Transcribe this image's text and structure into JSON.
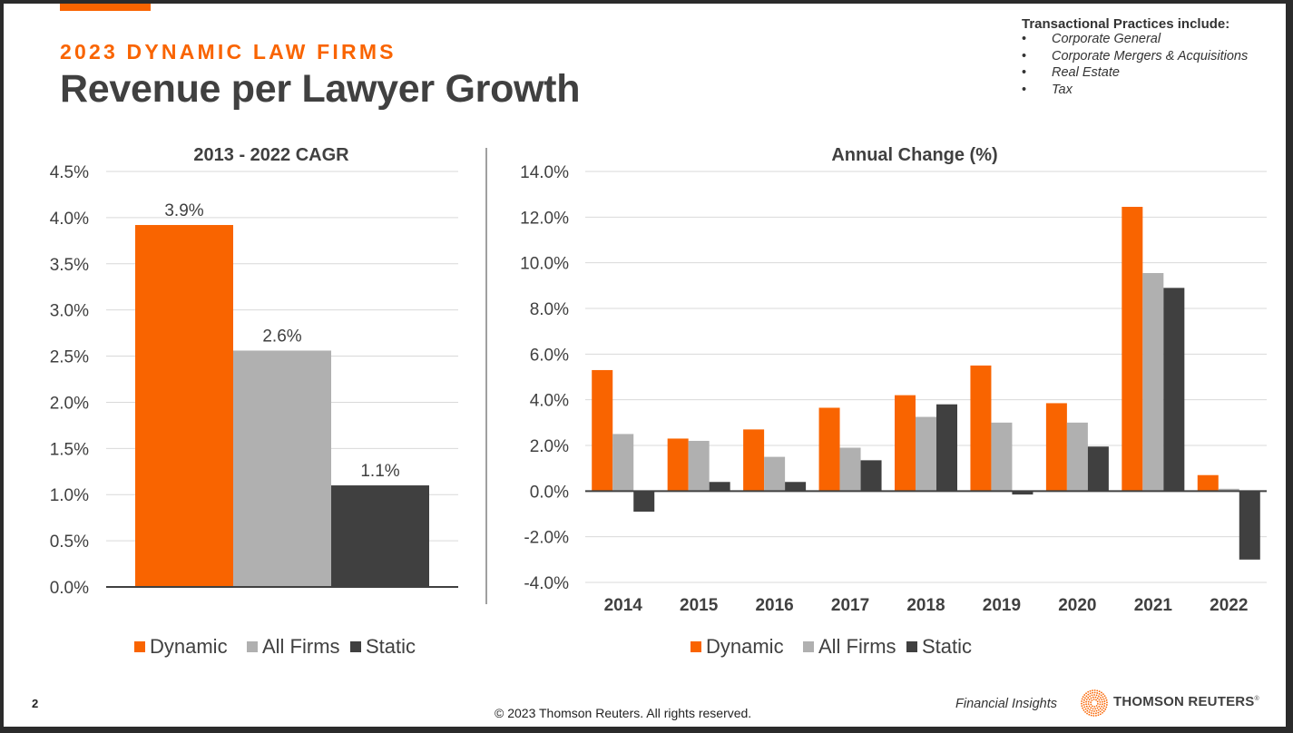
{
  "header": {
    "subtitle": "2023 DYNAMIC LAW FIRMS",
    "title": "Revenue per Lawyer Growth"
  },
  "note": {
    "heading": "Transactional Practices include:",
    "bullet": "•",
    "items": [
      "Corporate General",
      "Corporate Mergers & Acquisitions",
      "Real Estate",
      "Tax"
    ]
  },
  "colors": {
    "dynamic": "#f96400",
    "all_firms": "#b0b0b0",
    "static": "#404040",
    "grid": "#d9d9d9",
    "text": "#404040"
  },
  "chart_data": [
    {
      "type": "bar",
      "title": "2013 - 2022 CAGR",
      "xlabel": "",
      "ylabel": "",
      "ylim": [
        0,
        4.5
      ],
      "yticks": [
        "0.0%",
        "0.5%",
        "1.0%",
        "1.5%",
        "2.0%",
        "2.5%",
        "3.0%",
        "3.5%",
        "4.0%",
        "4.5%"
      ],
      "ytick_values": [
        0,
        0.5,
        1.0,
        1.5,
        2.0,
        2.5,
        3.0,
        3.5,
        4.0,
        4.5
      ],
      "grid": true,
      "legend": "bottom",
      "series": [
        {
          "name": "Dynamic",
          "values": [
            3.92
          ],
          "label": "3.9%"
        },
        {
          "name": "All Firms",
          "values": [
            2.56
          ],
          "label": "2.6%"
        },
        {
          "name": "Static",
          "values": [
            1.1
          ],
          "label": "1.1%"
        }
      ]
    },
    {
      "type": "bar",
      "title": "Annual Change (%)",
      "xlabel": "",
      "ylabel": "",
      "ylim": [
        -4,
        14
      ],
      "yticks": [
        "-4.0%",
        "-2.0%",
        "0.0%",
        "2.0%",
        "4.0%",
        "6.0%",
        "8.0%",
        "10.0%",
        "12.0%",
        "14.0%"
      ],
      "ytick_values": [
        -4,
        -2,
        0,
        2,
        4,
        6,
        8,
        10,
        12,
        14
      ],
      "grid": true,
      "legend": "bottom",
      "categories": [
        "2014",
        "2015",
        "2016",
        "2017",
        "2018",
        "2019",
        "2020",
        "2021",
        "2022"
      ],
      "series": [
        {
          "name": "Dynamic",
          "values": [
            5.3,
            2.3,
            2.7,
            3.65,
            4.2,
            5.5,
            3.85,
            12.45,
            0.7
          ]
        },
        {
          "name": "All Firms",
          "values": [
            2.5,
            2.2,
            1.5,
            1.9,
            3.25,
            3.0,
            3.0,
            9.55,
            0.1
          ]
        },
        {
          "name": "Static",
          "values": [
            -0.9,
            0.4,
            0.4,
            1.35,
            3.8,
            -0.15,
            1.95,
            8.9,
            -3.0
          ]
        }
      ]
    }
  ],
  "footer": {
    "page_number": "2",
    "copyright": "© 2023 Thomson Reuters. All rights reserved.",
    "financial_insights": "Financial Insights",
    "brand": "THOMSON REUTERS",
    "brand_mark": "®"
  }
}
